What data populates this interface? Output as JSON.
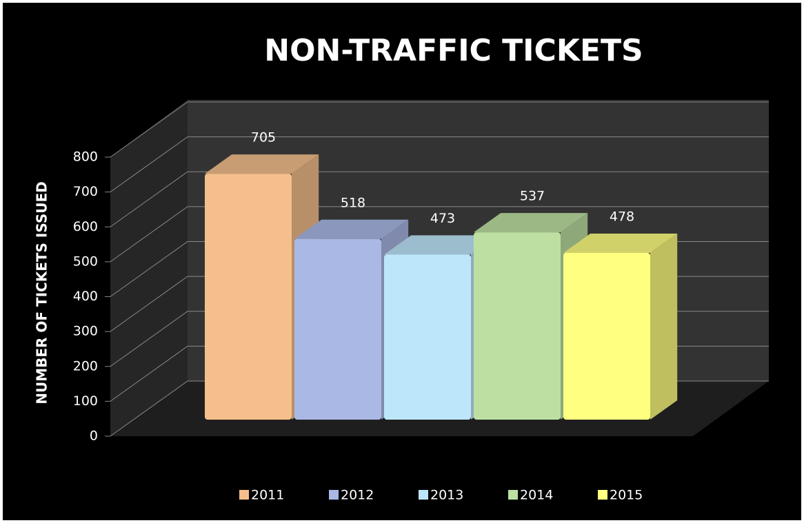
{
  "chart_data": {
    "type": "bar",
    "title": "NON-TRAFFIC TICKETS",
    "y_label": "NUMBER OF TICKETS ISSUED",
    "categories": [
      null
    ],
    "series": [
      {
        "name": "2011",
        "color": "#f4bf8c",
        "values": [
          705
        ]
      },
      {
        "name": "2012",
        "color": "#aab8e6",
        "values": [
          518
        ]
      },
      {
        "name": "2013",
        "color": "#bde6fa",
        "values": [
          473
        ]
      },
      {
        "name": "2014",
        "color": "#bde0a2",
        "values": [
          537
        ]
      },
      {
        "name": "2015",
        "color": "#ffff80",
        "values": [
          478
        ]
      }
    ],
    "ylim": [
      0,
      800
    ],
    "yticks": [
      0,
      100,
      200,
      300,
      400,
      500,
      600,
      700,
      800
    ],
    "grid": true,
    "legend": "bottom"
  }
}
